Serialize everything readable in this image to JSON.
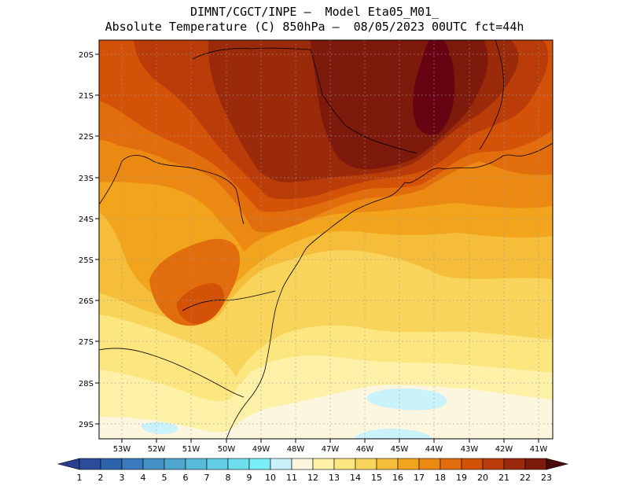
{
  "title": {
    "line1": "DIMNT/CGCT/INPE —  Model Eta05_M01_",
    "line2": "Absolute Temperature (C) 850hPa —  08/05/2023 00UTC fct=44h"
  },
  "axes": {
    "lat_labels": [
      "20S",
      "21S",
      "22S",
      "23S",
      "24S",
      "25S",
      "26S",
      "27S",
      "28S",
      "29S"
    ],
    "lon_labels": [
      "53W",
      "52W",
      "51W",
      "50W",
      "49W",
      "48W",
      "47W",
      "46W",
      "45W",
      "44W",
      "43W",
      "42W",
      "41W"
    ]
  },
  "colorbar": {
    "labels": [
      "1",
      "2",
      "3",
      "4",
      "5",
      "6",
      "7",
      "8",
      "9",
      "10",
      "11",
      "12",
      "13",
      "14",
      "15",
      "16",
      "17",
      "18",
      "19",
      "20",
      "21",
      "22",
      "23"
    ],
    "colors": [
      "#2b4b9b",
      "#2d62ac",
      "#3a7bbd",
      "#4592c6",
      "#4ea6cf",
      "#58bbd9",
      "#62cde3",
      "#6edeee",
      "#7aeefa",
      "#c9f2fa",
      "#fdf6df",
      "#fcf1a6",
      "#fbe680",
      "#f9d45a",
      "#f5bd3a",
      "#f2a51c",
      "#ec8913",
      "#e26d0c",
      "#d45208",
      "#b93c09",
      "#9b2a0b",
      "#7e1a0b",
      "#660413"
    ],
    "under_color": "#2a3f8f",
    "over_color": "#4a0a0a"
  },
  "field": {
    "background": "#f9d45a",
    "bands": [
      {
        "color": "#fbe680",
        "label": "13"
      },
      {
        "color": "#fcf1a6",
        "label": "12"
      },
      {
        "color": "#fdf6df",
        "label": "11"
      },
      {
        "color": "#c9f2fa",
        "label": "10"
      },
      {
        "color": "#f5bd3a",
        "label": "15"
      },
      {
        "color": "#f2a51c",
        "label": "16"
      },
      {
        "color": "#ec8913",
        "label": "17"
      },
      {
        "color": "#e26d0c",
        "label": "18"
      },
      {
        "color": "#d45208",
        "label": "19"
      },
      {
        "color": "#b93c09",
        "label": "20"
      },
      {
        "color": "#9b2a0b",
        "label": "21"
      },
      {
        "color": "#7e1a0b",
        "label": "22"
      },
      {
        "color": "#660413",
        "label": "23"
      }
    ]
  }
}
